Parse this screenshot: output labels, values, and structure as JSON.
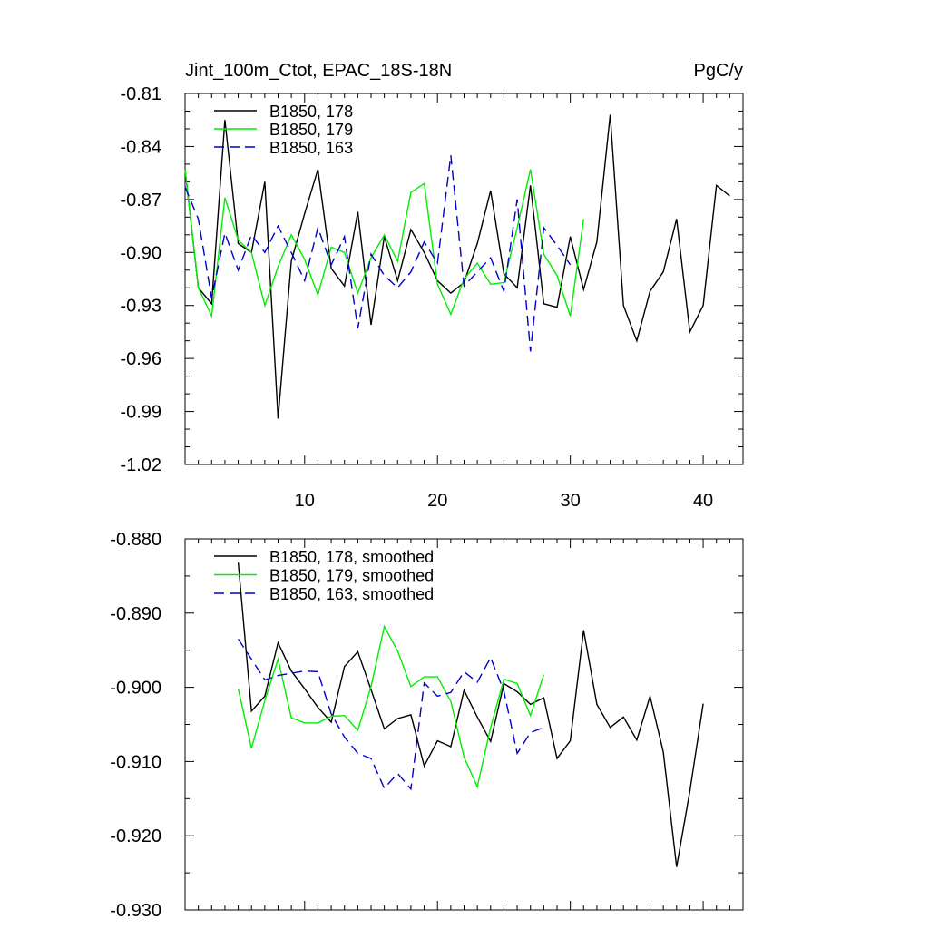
{
  "chart_data": [
    {
      "type": "line",
      "title_left": "Jint_100m_Ctot, EPAC_18S-18N",
      "title_right": "PgC/y",
      "xlim": [
        1,
        43
      ],
      "ylim": [
        -1.02,
        -0.81
      ],
      "xticks": [
        10,
        20,
        30,
        40
      ],
      "xtick_labels": [
        "10",
        "20",
        "30",
        "40"
      ],
      "yticks": [
        -0.81,
        -0.84,
        -0.87,
        -0.9,
        -0.93,
        -0.96,
        -0.99,
        -1.02
      ],
      "ytick_labels": [
        "-0.81",
        "-0.84",
        "-0.87",
        "-0.90",
        "-0.93",
        "-0.96",
        "-0.99",
        "-1.02"
      ],
      "legend": [
        {
          "label": "B1850, 178",
          "color": "#000000",
          "dash": "solid"
        },
        {
          "label": "B1850, 179",
          "color": "#00ee00",
          "dash": "solid"
        },
        {
          "label": "B1850, 163",
          "color": "#0000cc",
          "dash": "dashed"
        }
      ],
      "series": [
        {
          "name": "B1850, 178",
          "color": "#000000",
          "dash": "solid",
          "x_start": 1,
          "values": [
            -0.853,
            -0.92,
            -0.929,
            -0.825,
            -0.895,
            -0.9,
            -0.86,
            -0.994,
            -0.905,
            -0.878,
            -0.853,
            -0.909,
            -0.919,
            -0.877,
            -0.941,
            -0.891,
            -0.916,
            -0.887,
            -0.9,
            -0.916,
            -0.923,
            -0.917,
            -0.895,
            -0.865,
            -0.912,
            -0.92,
            -0.862,
            -0.929,
            -0.931,
            -0.891,
            -0.921,
            -0.894,
            -0.822,
            -0.93,
            -0.95,
            -0.922,
            -0.911,
            -0.881,
            -0.945,
            -0.93,
            -0.862,
            -0.868
          ]
        },
        {
          "name": "B1850, 179",
          "color": "#00ee00",
          "dash": "solid",
          "x_start": 1,
          "values": [
            -0.853,
            -0.92,
            -0.936,
            -0.869,
            -0.893,
            -0.9,
            -0.93,
            -0.908,
            -0.89,
            -0.904,
            -0.924,
            -0.897,
            -0.9,
            -0.923,
            -0.903,
            -0.89,
            -0.905,
            -0.866,
            -0.861,
            -0.918,
            -0.935,
            -0.915,
            -0.906,
            -0.918,
            -0.917,
            -0.886,
            -0.853,
            -0.901,
            -0.913,
            -0.936,
            -0.881
          ]
        },
        {
          "name": "B1850, 163",
          "color": "#0000cc",
          "dash": "dashed",
          "x_start": 1,
          "values": [
            -0.863,
            -0.881,
            -0.926,
            -0.889,
            -0.91,
            -0.89,
            -0.9,
            -0.885,
            -0.9,
            -0.916,
            -0.886,
            -0.907,
            -0.891,
            -0.943,
            -0.901,
            -0.913,
            -0.92,
            -0.911,
            -0.894,
            -0.906,
            -0.845,
            -0.919,
            -0.911,
            -0.903,
            -0.922,
            -0.87,
            -0.956,
            -0.886,
            -0.896,
            -0.907
          ]
        }
      ]
    },
    {
      "type": "line",
      "xlim": [
        1,
        43
      ],
      "ylim": [
        -0.93,
        -0.88
      ],
      "xticks": [
        10,
        20,
        30,
        40
      ],
      "yticks": [
        -0.88,
        -0.89,
        -0.9,
        -0.91,
        -0.92,
        -0.93
      ],
      "ytick_labels": [
        "-0.880",
        "-0.890",
        "-0.900",
        "-0.910",
        "-0.920",
        "-0.930"
      ],
      "legend": [
        {
          "label": "B1850, 178, smoothed",
          "color": "#000000",
          "dash": "solid"
        },
        {
          "label": "B1850, 179, smoothed",
          "color": "#00ee00",
          "dash": "solid"
        },
        {
          "label": "B1850, 163, smoothed",
          "color": "#0000cc",
          "dash": "dashed"
        }
      ],
      "series": [
        {
          "name": "B1850, 178, smoothed",
          "color": "#000000",
          "dash": "solid",
          "x_start": 5,
          "values": [
            -0.8832,
            -0.9032,
            -0.9012,
            -0.894,
            -0.8978,
            -0.9002,
            -0.9027,
            -0.9047,
            -0.8972,
            -0.8952,
            -0.9003,
            -0.9056,
            -0.9042,
            -0.9037,
            -0.9106,
            -0.9072,
            -0.908,
            -0.9004,
            -0.904,
            -0.9073,
            -0.8995,
            -0.9006,
            -0.9023,
            -0.9014,
            -0.9096,
            -0.9072,
            -0.8923,
            -0.9023,
            -0.9054,
            -0.904,
            -0.9071,
            -0.9012,
            -0.9087,
            -0.9242,
            -0.914,
            -0.9022
          ]
        },
        {
          "name": "B1850, 179, smoothed",
          "color": "#00ee00",
          "dash": "solid",
          "x_start": 5,
          "values": [
            -0.9002,
            -0.9082,
            -0.9018,
            -0.8962,
            -0.9041,
            -0.9048,
            -0.9048,
            -0.9039,
            -0.9038,
            -0.9058,
            -0.8999,
            -0.8918,
            -0.8951,
            -0.8999,
            -0.8986,
            -0.8986,
            -0.9019,
            -0.9094,
            -0.9134,
            -0.9054,
            -0.8989,
            -0.8995,
            -0.9038,
            -0.8983
          ]
        },
        {
          "name": "B1850, 163, smoothed",
          "color": "#0000cc",
          "dash": "dashed",
          "x_start": 5,
          "values": [
            -0.8935,
            -0.8962,
            -0.899,
            -0.8984,
            -0.8981,
            -0.8978,
            -0.8979,
            -0.9036,
            -0.9067,
            -0.9089,
            -0.9096,
            -0.9136,
            -0.9116,
            -0.9137,
            -0.8994,
            -0.9012,
            -0.9007,
            -0.8979,
            -0.8993,
            -0.896,
            -0.9005,
            -0.9089,
            -0.9061,
            -0.9054
          ]
        }
      ]
    }
  ]
}
